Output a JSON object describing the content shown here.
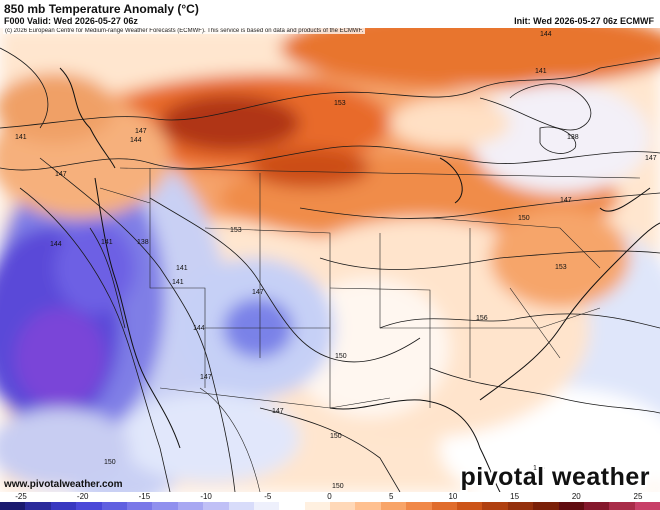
{
  "header": {
    "title": "850 mb Temperature Anomaly (°C)",
    "valid": "F000 Valid: Wed 2026-05-27 06z",
    "init": "Init: Wed 2026-05-27 06z ECMWF"
  },
  "map": {
    "copyright": "(c) 2026 European Centre for Medium-range Weather Forecasts (ECMWF). This service is based on data and products of the ECMWF.",
    "website": "www.pivotalweather.com",
    "brand": "pivotal weather",
    "contour_labels": [
      "144",
      "141",
      "153",
      "138",
      "141",
      "147",
      "144",
      "147",
      "147",
      "150",
      "153",
      "147",
      "144",
      "141",
      "138",
      "141",
      "141",
      "147",
      "144",
      "150",
      "156",
      "153",
      "150",
      "147",
      "147",
      "150",
      "156",
      "150"
    ]
  },
  "colorbar": {
    "labels": [
      "-25",
      "-20",
      "-15",
      "-10",
      "-5",
      "0",
      "5",
      "10",
      "15",
      "20",
      "25"
    ],
    "colors": [
      "#1a1a6e",
      "#2a2a9a",
      "#3838c0",
      "#4a48d8",
      "#6060e0",
      "#7a78e8",
      "#9090ee",
      "#a8a8f2",
      "#c0c0f6",
      "#d8dcfa",
      "#eef0fc",
      "#ffffff",
      "#fff0e0",
      "#ffd8b8",
      "#ffc090",
      "#f8a468",
      "#f08848",
      "#e06c2c",
      "#cc5418",
      "#b04010",
      "#94300c",
      "#7a2008",
      "#600c10",
      "#84182c",
      "#a82c48",
      "#c84068"
    ]
  }
}
